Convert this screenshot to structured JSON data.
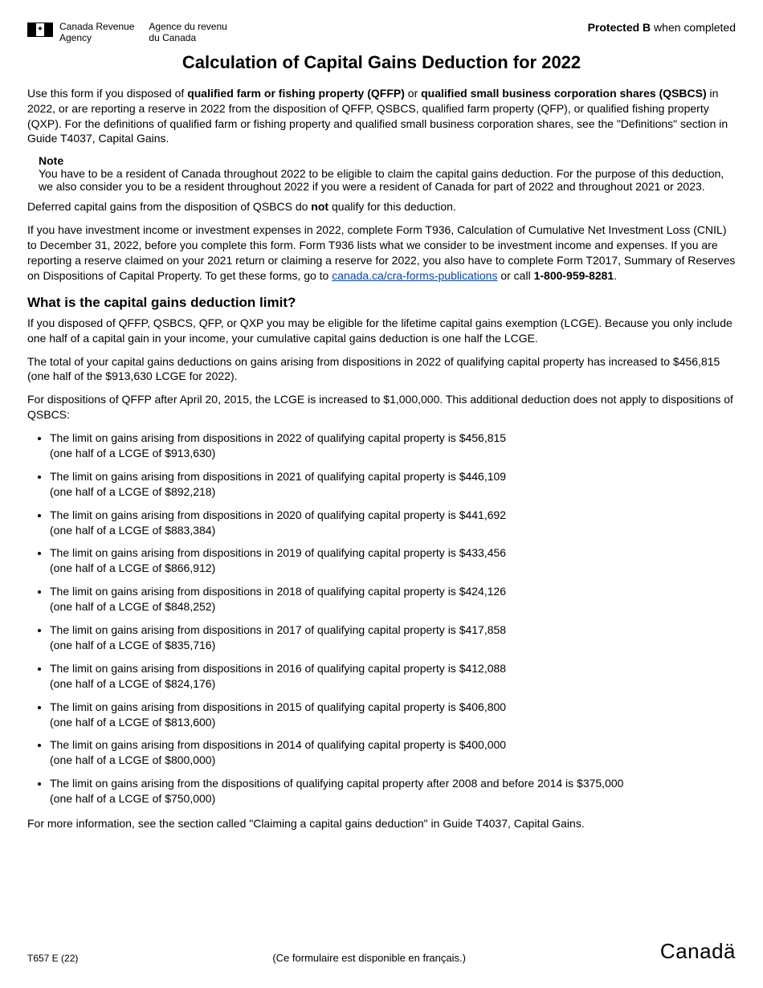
{
  "header": {
    "agency_en_line1": "Canada Revenue",
    "agency_en_line2": "Agency",
    "agency_fr_line1": "Agence du revenu",
    "agency_fr_line2": "du Canada",
    "protected_prefix": "Protected B",
    "protected_suffix": " when completed"
  },
  "title": "Calculation of Capital Gains Deduction for 2022",
  "intro": {
    "p1_a": "Use this form if you disposed of ",
    "p1_b": "qualified farm or fishing property (QFFP)",
    "p1_c": " or ",
    "p1_d": "qualified small business corporation shares (QSBCS)",
    "p1_e": " in 2022, or are reporting a reserve in 2022 from the disposition of QFFP, QSBCS, qualified farm property (QFP), or qualified fishing property (QXP). For the definitions of qualified farm or fishing property and qualified small business corporation shares, see the \"Definitions\" section in Guide T4037, Capital Gains."
  },
  "note": {
    "label": "Note",
    "text": "You have to be a resident of Canada throughout 2022 to be eligible to claim the capital gains deduction. For the purpose of this deduction, we also consider you to be a resident throughout 2022 if you were a resident of Canada for part of 2022 and throughout 2021 or 2023."
  },
  "deferred": {
    "a": "Deferred capital gains from the disposition of QSBCS do ",
    "b": "not",
    "c": " qualify for this deduction."
  },
  "t936": {
    "a": "If you have investment income or investment expenses in 2022, complete Form T936, Calculation of Cumulative Net Investment Loss (CNIL) to December 31, 2022, before you complete this form. Form T936 lists what we consider to be investment income and expenses. If you are reporting a reserve claimed on your 2021 return or claiming a reserve for 2022, you also have to complete Form T2017, Summary of Reserves on Dispositions of Capital Property. To get these forms, go to ",
    "link_text": "canada.ca/cra-forms-publications",
    "link_href": "https://canada.ca/cra-forms-publications",
    "b": " or call ",
    "phone": "1-800-959-8281",
    "c": "."
  },
  "limit_heading": "What is the capital gains deduction limit?",
  "limit_p1": "If you disposed of QFFP, QSBCS, QFP, or QXP you may be eligible for the lifetime capital gains exemption (LCGE). Because you only include one half of a capital gain in your income, your cumulative capital gains deduction is one half the LCGE.",
  "limit_p2": "The total of your capital gains deductions on gains arising from dispositions in 2022 of qualifying capital property has increased to $456,815 (one half of the $913,630 LCGE for 2022).",
  "limit_p3": "For dispositions of QFFP after April 20, 2015, the LCGE is increased to $1,000,000. This additional deduction does not apply to dispositions of QSBCS:",
  "limits": [
    {
      "line1": "The limit on gains arising from dispositions in 2022 of qualifying capital property is $456,815",
      "line2": "(one half of a LCGE of $913,630)"
    },
    {
      "line1": "The limit on gains arising from dispositions in 2021 of qualifying capital property is $446,109",
      "line2": "(one half of a LCGE of $892,218)"
    },
    {
      "line1": "The limit on gains arising from dispositions in 2020 of qualifying capital property is $441,692",
      "line2": "(one half of a LCGE of $883,384)"
    },
    {
      "line1": "The limit on gains arising from dispositions in 2019 of qualifying capital property is $433,456",
      "line2": "(one half of a LCGE of $866,912)"
    },
    {
      "line1": "The limit on gains arising from dispositions in 2018 of qualifying capital property is $424,126",
      "line2": "(one half of a LCGE of $848,252)"
    },
    {
      "line1": "The limit on gains arising from dispositions in 2017 of qualifying capital property is $417,858",
      "line2": "(one half of a LCGE of $835,716)"
    },
    {
      "line1": "The limit on gains arising from dispositions in 2016 of qualifying capital property is $412,088",
      "line2": "(one half of a LCGE of $824,176)"
    },
    {
      "line1": "The limit on gains arising from dispositions in 2015 of qualifying capital property is $406,800",
      "line2": "(one half of a LCGE of $813,600)"
    },
    {
      "line1": "The limit on gains arising from dispositions in 2014 of qualifying capital property is $400,000",
      "line2": "(one half of a LCGE of $800,000)"
    },
    {
      "line1": "The limit on gains arising from the dispositions of qualifying capital property after 2008 and before 2014 is $375,000",
      "line2": "(one half of a LCGE of $750,000)"
    }
  ],
  "more_info": "For more information, see the section called \"Claiming a capital gains deduction\" in Guide T4037, Capital Gains.",
  "footer": {
    "form_id": "T657 E (22)",
    "french_note": "(Ce formulaire est disponible en français.)",
    "wordmark": "Canadä"
  },
  "colors": {
    "text": "#000000",
    "link": "#0645ad",
    "background": "#ffffff"
  }
}
